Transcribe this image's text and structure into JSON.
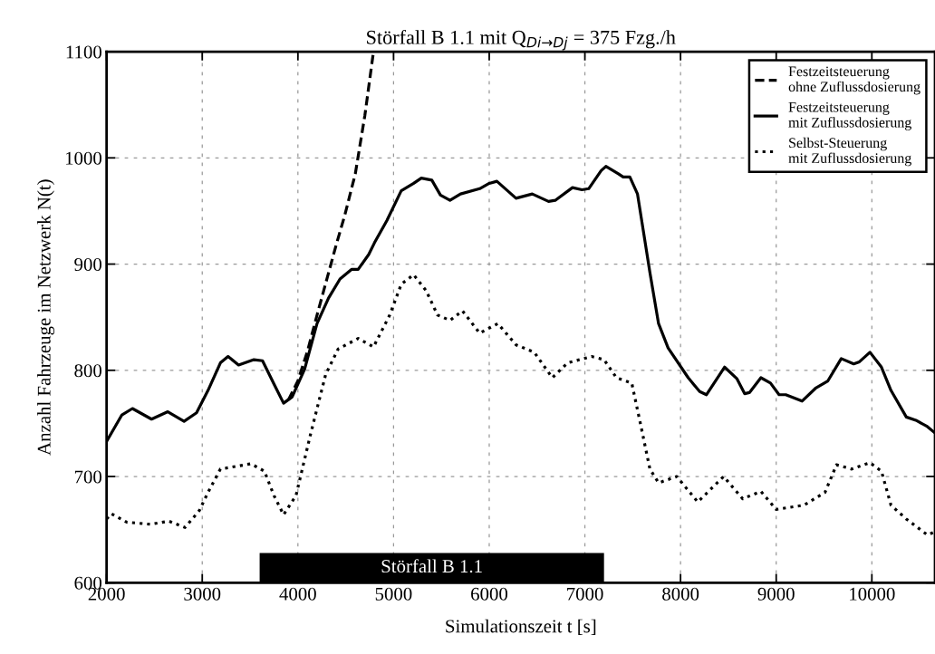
{
  "chart_data": {
    "type": "line",
    "title": "Störfall B 1.1 mit Q$_{Di→Dj}$ = 375 Fzg./h",
    "xlabel": "Simulationszeit t [s]",
    "ylabel": "Anzahl Fahrzeuge im Netzwerk N(t)",
    "xlim": [
      2000,
      10660
    ],
    "ylim": [
      600,
      1100
    ],
    "xticks": [
      2000,
      3000,
      4000,
      5000,
      6000,
      7000,
      8000,
      9000,
      10000
    ],
    "yticks": [
      600,
      700,
      800,
      900,
      1000,
      1100
    ],
    "grid": true,
    "legend": "top right",
    "marker": "none",
    "bands": [
      {
        "axis": "x",
        "from": 3600,
        "to": 7200,
        "label": "Störfall B 1.1",
        "color": "#000000"
      }
    ],
    "series": [
      {
        "name": "Festzeitsteuerung\nohne Zuflussdosierung",
        "color": "#000000",
        "line_style": "dashed",
        "x": [
          3900,
          4000,
          4100,
          4200,
          4300,
          4400,
          4490,
          4600,
          4700,
          4790
        ],
        "values": [
          772,
          790,
          818,
          852,
          885,
          918,
          946,
          985,
          1040,
          1100
        ]
      },
      {
        "name": "Festzeitsteuerung\nmit Zuflussdosierung",
        "color": "#000000",
        "line_style": "solid",
        "x": [
          2000,
          2160,
          2270,
          2470,
          2640,
          2810,
          2940,
          3060,
          3190,
          3270,
          3380,
          3540,
          3630,
          3750,
          3850,
          3940,
          4070,
          4200,
          4320,
          4440,
          4560,
          4630,
          4740,
          4800,
          4930,
          5080,
          5210,
          5290,
          5400,
          5490,
          5590,
          5700,
          5900,
          6000,
          6080,
          6280,
          6450,
          6620,
          6690,
          6870,
          6970,
          7040,
          7170,
          7220,
          7350,
          7400,
          7470,
          7550,
          7680,
          7770,
          7870,
          8080,
          8200,
          8270,
          8460,
          8590,
          8670,
          8720,
          8840,
          8940,
          9030,
          9100,
          9270,
          9410,
          9540,
          9680,
          9810,
          9870,
          9980,
          10100,
          10200,
          10360,
          10460,
          10580,
          10660
        ],
        "values": [
          733,
          758,
          764,
          754,
          761,
          752,
          760,
          781,
          807,
          813,
          805,
          810,
          809,
          787,
          769,
          775,
          801,
          844,
          868,
          886,
          895,
          895,
          909,
          920,
          941,
          969,
          976,
          981,
          979,
          965,
          960,
          966,
          971,
          976,
          978,
          962,
          966,
          959,
          960,
          972,
          970,
          971,
          988,
          992,
          985,
          982,
          982,
          966,
          892,
          844,
          821,
          793,
          780,
          777,
          803,
          792,
          778,
          779,
          793,
          788,
          777,
          777,
          771,
          783,
          790,
          811,
          806,
          808,
          817,
          803,
          781,
          756,
          753,
          747,
          741
        ]
      },
      {
        "name": "Selbst-Steuerung\nmit Zuflussdosierung",
        "color": "#000000",
        "line_style": "dotted",
        "x": [
          2000,
          2050,
          2210,
          2460,
          2650,
          2820,
          2970,
          3060,
          3190,
          3510,
          3650,
          3750,
          3850,
          3980,
          4130,
          4290,
          4420,
          4630,
          4790,
          4960,
          5080,
          5210,
          5340,
          5460,
          5590,
          5720,
          5900,
          6090,
          6280,
          6470,
          6660,
          6820,
          7070,
          7200,
          7330,
          7490,
          7580,
          7680,
          7770,
          7960,
          8180,
          8450,
          8650,
          8840,
          9000,
          9290,
          9510,
          9630,
          9790,
          9980,
          10100,
          10200,
          10360,
          10580,
          10660
        ],
        "values": [
          660,
          665,
          657,
          655,
          658,
          652,
          668,
          685,
          707,
          712,
          705,
          682,
          664,
          682,
          739,
          796,
          820,
          830,
          822,
          852,
          881,
          890,
          875,
          852,
          847,
          856,
          835,
          844,
          824,
          817,
          793,
          807,
          813,
          810,
          793,
          788,
          750,
          707,
          694,
          700,
          676,
          700,
          679,
          686,
          669,
          673,
          685,
          711,
          707,
          713,
          705,
          673,
          660,
          645,
          648
        ]
      }
    ]
  }
}
